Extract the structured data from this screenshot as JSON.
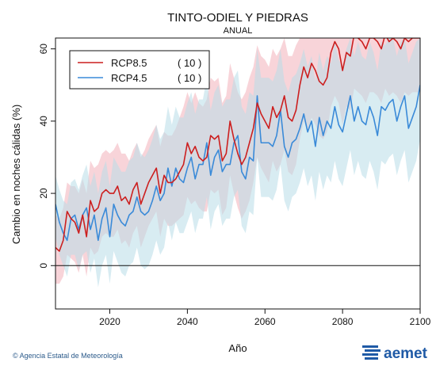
{
  "chart_data": {
    "type": "line",
    "title": "TINTO-ODIEL Y PIEDRAS",
    "subtitle": "ANUAL",
    "xlabel": "Año",
    "ylabel": "Cambio en noches cálidas (%)",
    "xlim": [
      2006,
      2100
    ],
    "ylim": [
      -12,
      63
    ],
    "x_ticks": [
      2020,
      2040,
      2060,
      2080,
      2100
    ],
    "y_ticks": [
      0,
      20,
      40,
      60
    ],
    "zero_line": 0,
    "grid": false,
    "legend_position": "top-left",
    "x": [
      2006,
      2007,
      2008,
      2009,
      2010,
      2011,
      2012,
      2013,
      2014,
      2015,
      2016,
      2017,
      2018,
      2019,
      2020,
      2021,
      2022,
      2023,
      2024,
      2025,
      2026,
      2027,
      2028,
      2029,
      2030,
      2031,
      2032,
      2033,
      2034,
      2035,
      2036,
      2037,
      2038,
      2039,
      2040,
      2041,
      2042,
      2043,
      2044,
      2045,
      2046,
      2047,
      2048,
      2049,
      2050,
      2051,
      2052,
      2053,
      2054,
      2055,
      2056,
      2057,
      2058,
      2059,
      2060,
      2061,
      2062,
      2063,
      2064,
      2065,
      2066,
      2067,
      2068,
      2069,
      2070,
      2071,
      2072,
      2073,
      2074,
      2075,
      2076,
      2077,
      2078,
      2079,
      2080,
      2081,
      2082,
      2083,
      2084,
      2085,
      2086,
      2087,
      2088,
      2089,
      2090,
      2091,
      2092,
      2093,
      2094,
      2095,
      2096,
      2097,
      2098,
      2099,
      2100
    ],
    "series": [
      {
        "name": "RCP8.5",
        "count": "( 10 )",
        "color": "#cc1f1f",
        "band_color": "#f4b8c0",
        "values": [
          5,
          4,
          7,
          15,
          13,
          12,
          9,
          14,
          8,
          18,
          15,
          16,
          20,
          21,
          20,
          20,
          22,
          18,
          19,
          17,
          21,
          23,
          17,
          20,
          23,
          25,
          27,
          20,
          25,
          23,
          23,
          24,
          26,
          28,
          34,
          31,
          33,
          30,
          29,
          30,
          36,
          35,
          36,
          29,
          31,
          40,
          35,
          31,
          28,
          30,
          34,
          38,
          45,
          42,
          40,
          38,
          44,
          41,
          43,
          47,
          41,
          40,
          43,
          50,
          55,
          52,
          56,
          54,
          51,
          50,
          52,
          59,
          62,
          60,
          54,
          59,
          58,
          64,
          63,
          62,
          60,
          63,
          63,
          62,
          60,
          64,
          62,
          63,
          62,
          60,
          63,
          62,
          63,
          63,
          63
        ],
        "upper": [
          14,
          13,
          16,
          23,
          22,
          22,
          20,
          24,
          20,
          29,
          27,
          28,
          31,
          32,
          31,
          32,
          34,
          31,
          31,
          29,
          32,
          34,
          30,
          32,
          35,
          37,
          39,
          33,
          37,
          36,
          36,
          38,
          41,
          44,
          48,
          45,
          48,
          45,
          44,
          46,
          52,
          51,
          52,
          45,
          47,
          56,
          52,
          48,
          46,
          48,
          52,
          55,
          61,
          58,
          57,
          55,
          60,
          58,
          60,
          63,
          58,
          58,
          61,
          63,
          63,
          63,
          63,
          63,
          63,
          63,
          63,
          63,
          63,
          63,
          63,
          63,
          63,
          63,
          63,
          63,
          63,
          63,
          63,
          63,
          63,
          63,
          63,
          63,
          63,
          63,
          63,
          63,
          63,
          63,
          63
        ],
        "lower": [
          -5,
          -5,
          -3,
          3,
          2,
          1,
          -2,
          3,
          -3,
          5,
          3,
          4,
          8,
          9,
          8,
          8,
          10,
          6,
          7,
          5,
          9,
          11,
          5,
          8,
          11,
          13,
          15,
          8,
          13,
          11,
          11,
          12,
          13,
          14,
          19,
          17,
          18,
          16,
          15,
          15,
          21,
          20,
          21,
          14,
          16,
          25,
          20,
          16,
          13,
          15,
          18,
          23,
          30,
          27,
          25,
          23,
          29,
          26,
          28,
          32,
          26,
          25,
          28,
          35,
          40,
          37,
          41,
          39,
          36,
          35,
          37,
          44,
          47,
          45,
          39,
          44,
          43,
          49,
          48,
          47,
          45,
          48,
          48,
          47,
          45,
          49,
          47,
          48,
          47,
          45,
          48,
          47,
          48,
          48,
          48
        ]
      },
      {
        "name": "RCP4.5",
        "count": "( 10 )",
        "color": "#3a8ad8",
        "band_color": "#b8dce8",
        "values": [
          17,
          12,
          9,
          7,
          13,
          14,
          10,
          14,
          16,
          10,
          14,
          7,
          13,
          16,
          8,
          17,
          14,
          12,
          11,
          14,
          15,
          19,
          15,
          14,
          15,
          18,
          22,
          18,
          20,
          27,
          22,
          27,
          24,
          23,
          27,
          30,
          24,
          28,
          28,
          34,
          25,
          30,
          32,
          26,
          28,
          28,
          34,
          36,
          26,
          24,
          30,
          29,
          47,
          34,
          34,
          34,
          33,
          36,
          43,
          33,
          30,
          34,
          35,
          38,
          42,
          37,
          40,
          33,
          41,
          36,
          40,
          38,
          44,
          39,
          37,
          42,
          47,
          40,
          44,
          40,
          39,
          44,
          41,
          36,
          44,
          43,
          45,
          46,
          40,
          44,
          47,
          38,
          41,
          44,
          50
        ],
        "upper": [
          25,
          21,
          18,
          17,
          23,
          24,
          21,
          25,
          28,
          22,
          26,
          20,
          26,
          29,
          22,
          30,
          28,
          26,
          26,
          29,
          30,
          34,
          31,
          30,
          32,
          35,
          39,
          35,
          37,
          44,
          39,
          44,
          41,
          41,
          45,
          48,
          42,
          46,
          46,
          52,
          43,
          48,
          50,
          44,
          46,
          46,
          52,
          54,
          44,
          42,
          48,
          47,
          60,
          52,
          52,
          52,
          51,
          54,
          60,
          51,
          48,
          52,
          53,
          56,
          60,
          55,
          58,
          51,
          59,
          54,
          58,
          56,
          62,
          57,
          55,
          60,
          63,
          58,
          62,
          58,
          57,
          62,
          59,
          54,
          62,
          61,
          63,
          63,
          58,
          62,
          63,
          56,
          59,
          62,
          63
        ],
        "lower": [
          8,
          3,
          0,
          -3,
          3,
          3,
          -1,
          3,
          4,
          -2,
          2,
          -6,
          0,
          3,
          -5,
          4,
          1,
          -2,
          -3,
          0,
          1,
          5,
          0,
          -1,
          0,
          3,
          7,
          3,
          5,
          12,
          7,
          12,
          9,
          9,
          12,
          15,
          9,
          13,
          13,
          19,
          10,
          15,
          17,
          11,
          13,
          13,
          19,
          21,
          11,
          9,
          15,
          14,
          30,
          19,
          19,
          19,
          18,
          21,
          28,
          18,
          15,
          19,
          20,
          23,
          27,
          22,
          25,
          18,
          26,
          21,
          25,
          23,
          29,
          24,
          22,
          27,
          32,
          25,
          29,
          25,
          24,
          29,
          26,
          21,
          29,
          28,
          30,
          31,
          25,
          29,
          32,
          23,
          26,
          29,
          35
        ]
      }
    ]
  },
  "footer": {
    "credit": "© Agencia Estatal de Meteorología",
    "logo_text": "aemet"
  }
}
